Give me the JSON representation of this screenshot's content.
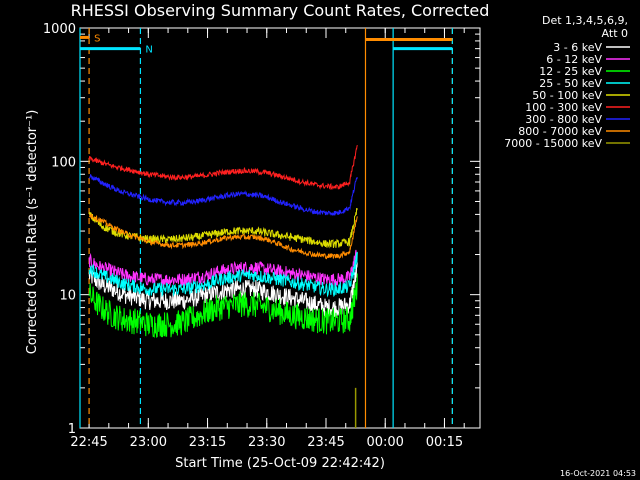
{
  "chart_data": {
    "type": "line",
    "title": "RHESSI Observing Summary Count Rates, Corrected",
    "xlabel": "Start Time (25-Oct-09 22:42:42)",
    "ylabel": "Corrected Count Rate (s⁻¹ detector⁻¹)",
    "y_scale": "log",
    "ylim": [
      1,
      1000
    ],
    "xlim": [
      "22:42:42",
      "00:24:00"
    ],
    "yticks": [
      "1",
      "10",
      "100",
      "1000"
    ],
    "xticks": [
      "22:45",
      "23:00",
      "23:15",
      "23:30",
      "23:45",
      "00:00",
      "00:15"
    ],
    "legend_header": [
      "Det 1,3,4,5,6,9,",
      "Att 0"
    ],
    "legend_placement": "right",
    "footer": "16-Oct-2021 04:53",
    "markers": [
      {
        "label": "S",
        "time": "22:45",
        "color": "#ff8c00",
        "segment_time_range": [
          "22:42:42",
          "22:45"
        ],
        "segment_level": 850
      },
      {
        "label": "N",
        "time": "22:58",
        "color": "#00e5ff",
        "segment_time_range": [
          "22:42:42",
          "22:58"
        ],
        "segment_level": 700
      }
    ],
    "vlines": [
      {
        "time": "22:42:42",
        "color": "#00e5ff",
        "style": "solid"
      },
      {
        "time": "22:45",
        "color": "#ff8c00",
        "style": "dashed"
      },
      {
        "time": "22:58",
        "color": "#00e5ff",
        "style": "dashed"
      },
      {
        "time": "23:55",
        "color": "#ff8c00",
        "style": "solid"
      },
      {
        "time": "00:02",
        "color": "#00e5ff",
        "style": "solid"
      },
      {
        "time": "00:17",
        "color": "#ff8c00",
        "style": "dashed"
      },
      {
        "time": "00:17",
        "color": "#00e5ff",
        "style": "dashed"
      }
    ],
    "hsegments": [
      {
        "time_range": [
          "23:55",
          "00:17"
        ],
        "level": 820,
        "color": "#ff8c00"
      },
      {
        "time_range": [
          "00:02",
          "00:17"
        ],
        "level": 700,
        "color": "#00e5ff"
      }
    ],
    "x": [
      "22:45",
      "22:48",
      "22:51",
      "22:54",
      "22:57",
      "23:00",
      "23:03",
      "23:06",
      "23:09",
      "23:12",
      "23:15",
      "23:18",
      "23:21",
      "23:24",
      "23:27",
      "23:30",
      "23:33",
      "23:36",
      "23:39",
      "23:42",
      "23:45",
      "23:48",
      "23:51",
      "23:53"
    ],
    "series": [
      {
        "name": "3 - 6 keV",
        "color": "#ffffff",
        "noise": 0.07,
        "values": [
          14,
          12,
          11,
          10,
          9.5,
          9,
          9,
          9,
          9,
          9.5,
          10,
          10.5,
          11,
          11,
          11,
          10.5,
          10,
          9.5,
          9,
          8.5,
          8,
          8,
          8.5,
          16
        ]
      },
      {
        "name": "6 - 12 keV",
        "color": "#ff33ff",
        "noise": 0.05,
        "values": [
          18,
          16,
          15,
          14,
          13.5,
          13,
          13,
          13,
          13,
          13.5,
          14,
          15,
          15.5,
          16,
          16,
          15.5,
          15,
          14.5,
          14,
          13.5,
          13,
          13,
          13.5,
          22
        ]
      },
      {
        "name": "12 - 25 keV",
        "color": "#00ff00",
        "noise": 0.1,
        "values": [
          10,
          8,
          7,
          6.5,
          6.3,
          6,
          6,
          6,
          6.2,
          6.8,
          7.5,
          8,
          8.3,
          8.5,
          8.3,
          8,
          7.5,
          7,
          6.8,
          6.5,
          6.3,
          6.3,
          6.5,
          12
        ]
      },
      {
        "name": "25 - 50 keV",
        "color": "#00ffff",
        "noise": 0.05,
        "values": [
          16,
          14,
          13,
          12,
          11.5,
          11,
          11,
          11,
          11,
          11.5,
          12,
          13,
          13.5,
          14,
          14,
          13.5,
          13,
          12.5,
          12,
          11.5,
          11,
          11,
          11.5,
          20
        ]
      },
      {
        "name": "50 - 100 keV",
        "color": "#dddd00",
        "noise": 0.03,
        "values": [
          40,
          33,
          30,
          28,
          27,
          26,
          26,
          26,
          26.5,
          27,
          28,
          29,
          30,
          30,
          30,
          29,
          28,
          27,
          26,
          25,
          24,
          24,
          25,
          45
        ]
      },
      {
        "name": "100 - 300 keV",
        "color": "#ff2020",
        "noise": 0.02,
        "values": [
          105,
          98,
          92,
          88,
          84,
          80,
          78,
          76,
          76,
          77,
          79,
          82,
          84,
          85,
          84,
          82,
          78,
          74,
          70,
          67,
          65,
          64,
          70,
          135
        ]
      },
      {
        "name": "300 - 800 keV",
        "color": "#2222ff",
        "noise": 0.02,
        "values": [
          78,
          70,
          63,
          58,
          55,
          52,
          50,
          49,
          49,
          50,
          52,
          54,
          56,
          57,
          56,
          54,
          50,
          47,
          44,
          42,
          41,
          41,
          45,
          80
        ]
      },
      {
        "name": "800 - 7000 keV",
        "color": "#ff8c00",
        "noise": 0.02,
        "values": [
          40,
          36,
          32,
          29,
          27,
          25,
          24,
          23.5,
          23.5,
          24,
          25,
          26,
          27,
          27,
          27,
          26,
          24,
          22,
          21,
          20,
          19.5,
          19.5,
          21,
          40
        ]
      },
      {
        "name": "7000 - 15000 keV",
        "color": "#999900",
        "noise": 0,
        "values": [
          null,
          null,
          null,
          null,
          null,
          null,
          null,
          null,
          null,
          null,
          null,
          null,
          null,
          null,
          null,
          null,
          null,
          null,
          null,
          null,
          null,
          null,
          null,
          null
        ]
      }
    ],
    "spike_7000": {
      "time_range": [
        "23:52:30",
        "23:53"
      ],
      "value_range": [
        1,
        2
      ]
    }
  }
}
